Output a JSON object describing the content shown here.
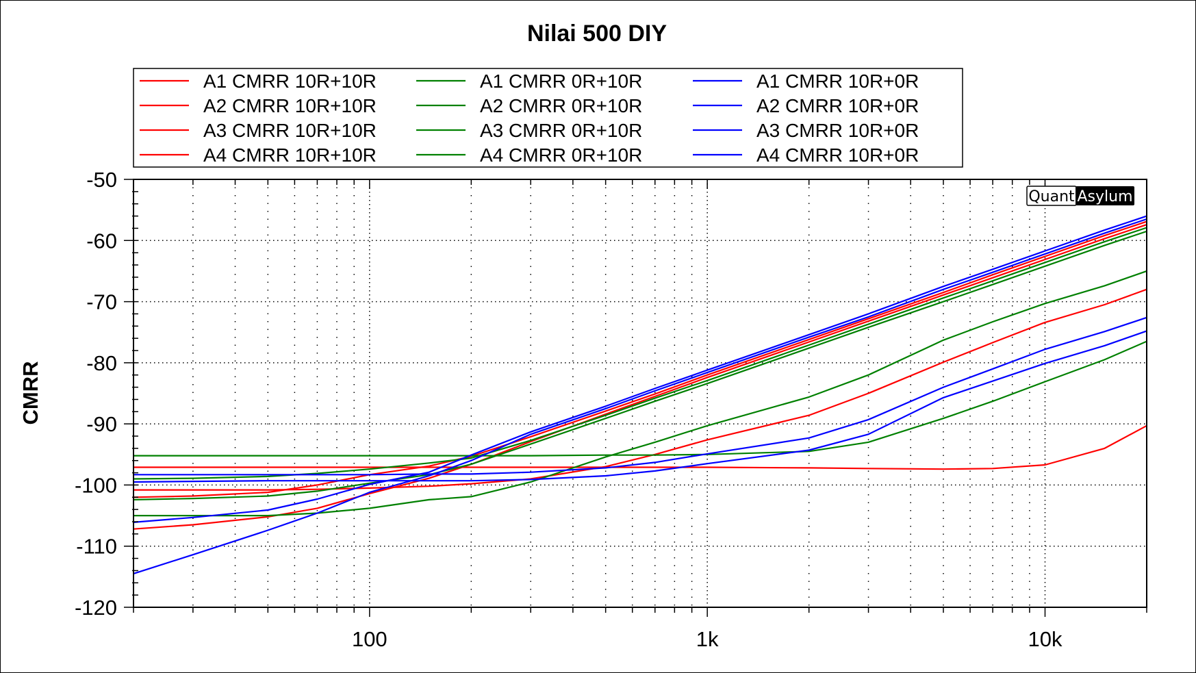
{
  "chart_data": {
    "type": "line",
    "title": "Nilai 500 DIY",
    "xlabel": "",
    "ylabel": "CMRR",
    "xscale": "log",
    "xlim": [
      20,
      20000
    ],
    "ylim": [
      -120,
      -50
    ],
    "xticks": [
      {
        "value": 100,
        "label": "100"
      },
      {
        "value": 1000,
        "label": "1k"
      },
      {
        "value": 10000,
        "label": "10k"
      }
    ],
    "yticks": [
      {
        "value": -50,
        "label": "-50"
      },
      {
        "value": -60,
        "label": "-60"
      },
      {
        "value": -70,
        "label": "-70"
      },
      {
        "value": -80,
        "label": "-80"
      },
      {
        "value": -90,
        "label": "-90"
      },
      {
        "value": -100,
        "label": "-100"
      },
      {
        "value": -110,
        "label": "-110"
      },
      {
        "value": -120,
        "label": "-120"
      }
    ],
    "grid": true,
    "legend_position": "top-center",
    "legend_columns": 3,
    "watermark": {
      "left": "Quant",
      "right": "Asylum"
    },
    "x": [
      20,
      30,
      50,
      70,
      100,
      150,
      200,
      300,
      500,
      700,
      1000,
      2000,
      3000,
      5000,
      7000,
      10000,
      15000,
      20000
    ],
    "series": [
      {
        "name": "A1 CMRR 10R+10R",
        "color": "#ff0000",
        "values": [
          -97.1,
          -97.1,
          -97.1,
          -97.1,
          -97.1,
          -97.1,
          -97.1,
          -97.1,
          -97.1,
          -97.1,
          -97.1,
          -97.2,
          -97.3,
          -97.4,
          -97.3,
          -96.7,
          -94.0,
          -90.3
        ]
      },
      {
        "name": "A2 CMRR 10R+10R",
        "color": "#ff0000",
        "values": [
          -100.8,
          -100.8,
          -100.8,
          -100.7,
          -100.5,
          -100.2,
          -99.8,
          -99.0,
          -97.0,
          -95.0,
          -92.6,
          -88.6,
          -85.0,
          -79.9,
          -76.7,
          -73.4,
          -70.5,
          -68.0
        ]
      },
      {
        "name": "A3 CMRR 10R+10R",
        "color": "#ff0000",
        "values": [
          -102.0,
          -101.8,
          -101.2,
          -100.0,
          -98.3,
          -96.9,
          -95.3,
          -92.1,
          -87.9,
          -85.1,
          -82.0,
          -76.2,
          -72.8,
          -68.5,
          -65.6,
          -62.6,
          -59.2,
          -56.9
        ]
      },
      {
        "name": "A4 CMRR 10R+10R",
        "color": "#ff0000",
        "values": [
          -107.2,
          -106.5,
          -105.2,
          -103.8,
          -101.4,
          -98.9,
          -96.6,
          -92.9,
          -88.4,
          -85.5,
          -82.4,
          -76.6,
          -73.2,
          -68.9,
          -66.1,
          -63.1,
          -59.7,
          -57.4
        ]
      },
      {
        "name": "A1 CMRR 0R+10R",
        "color": "#008000",
        "values": [
          -95.2,
          -95.2,
          -95.2,
          -95.2,
          -95.2,
          -95.2,
          -95.2,
          -95.2,
          -95.1,
          -95.1,
          -95.0,
          -94.5,
          -93.0,
          -89.1,
          -86.3,
          -83.1,
          -79.5,
          -76.5
        ]
      },
      {
        "name": "A2 CMRR 0R+10R",
        "color": "#008000",
        "values": [
          -105.0,
          -105.0,
          -105.0,
          -104.6,
          -103.8,
          -102.4,
          -101.9,
          -99.5,
          -95.4,
          -93.0,
          -90.3,
          -85.6,
          -82.0,
          -76.3,
          -73.3,
          -70.3,
          -67.4,
          -65.0
        ]
      },
      {
        "name": "A3 CMRR 0R+10R",
        "color": "#008000",
        "values": [
          -99.0,
          -98.9,
          -98.6,
          -98.1,
          -97.4,
          -96.4,
          -95.6,
          -92.7,
          -88.6,
          -85.8,
          -82.9,
          -77.1,
          -73.7,
          -69.4,
          -66.6,
          -63.6,
          -60.2,
          -57.9
        ]
      },
      {
        "name": "A4 CMRR 0R+10R",
        "color": "#008000",
        "values": [
          -102.4,
          -102.2,
          -101.8,
          -101.0,
          -99.7,
          -98.3,
          -96.6,
          -93.3,
          -89.1,
          -86.3,
          -83.4,
          -77.6,
          -74.2,
          -70.0,
          -67.2,
          -64.2,
          -60.8,
          -58.5
        ]
      },
      {
        "name": "A1 CMRR 10R+0R",
        "color": "#0000ff",
        "values": [
          -98.3,
          -98.3,
          -98.3,
          -98.3,
          -98.3,
          -98.2,
          -98.2,
          -97.9,
          -97.2,
          -96.3,
          -94.9,
          -92.3,
          -89.3,
          -84.0,
          -81.0,
          -77.8,
          -74.9,
          -72.6
        ]
      },
      {
        "name": "A2 CMRR 10R+0R",
        "color": "#0000ff",
        "values": [
          -99.5,
          -99.4,
          -99.3,
          -99.3,
          -99.3,
          -99.3,
          -99.3,
          -99.1,
          -98.5,
          -97.7,
          -96.5,
          -94.3,
          -91.7,
          -85.7,
          -83.0,
          -80.1,
          -77.2,
          -74.8
        ]
      },
      {
        "name": "A3 CMRR 10R+0R",
        "color": "#0000ff",
        "values": [
          -106.1,
          -105.3,
          -104.1,
          -102.3,
          -99.9,
          -97.9,
          -95.1,
          -91.3,
          -87.1,
          -84.2,
          -81.2,
          -75.4,
          -72.0,
          -67.5,
          -64.7,
          -61.7,
          -58.3,
          -56.0
        ]
      },
      {
        "name": "A4 CMRR 10R+0R",
        "color": "#0000ff",
        "values": [
          -114.5,
          -111.4,
          -107.4,
          -104.6,
          -101.2,
          -98.5,
          -96.0,
          -91.7,
          -87.5,
          -84.6,
          -81.6,
          -75.8,
          -72.5,
          -68.0,
          -65.2,
          -62.2,
          -58.8,
          -56.5
        ]
      }
    ]
  }
}
